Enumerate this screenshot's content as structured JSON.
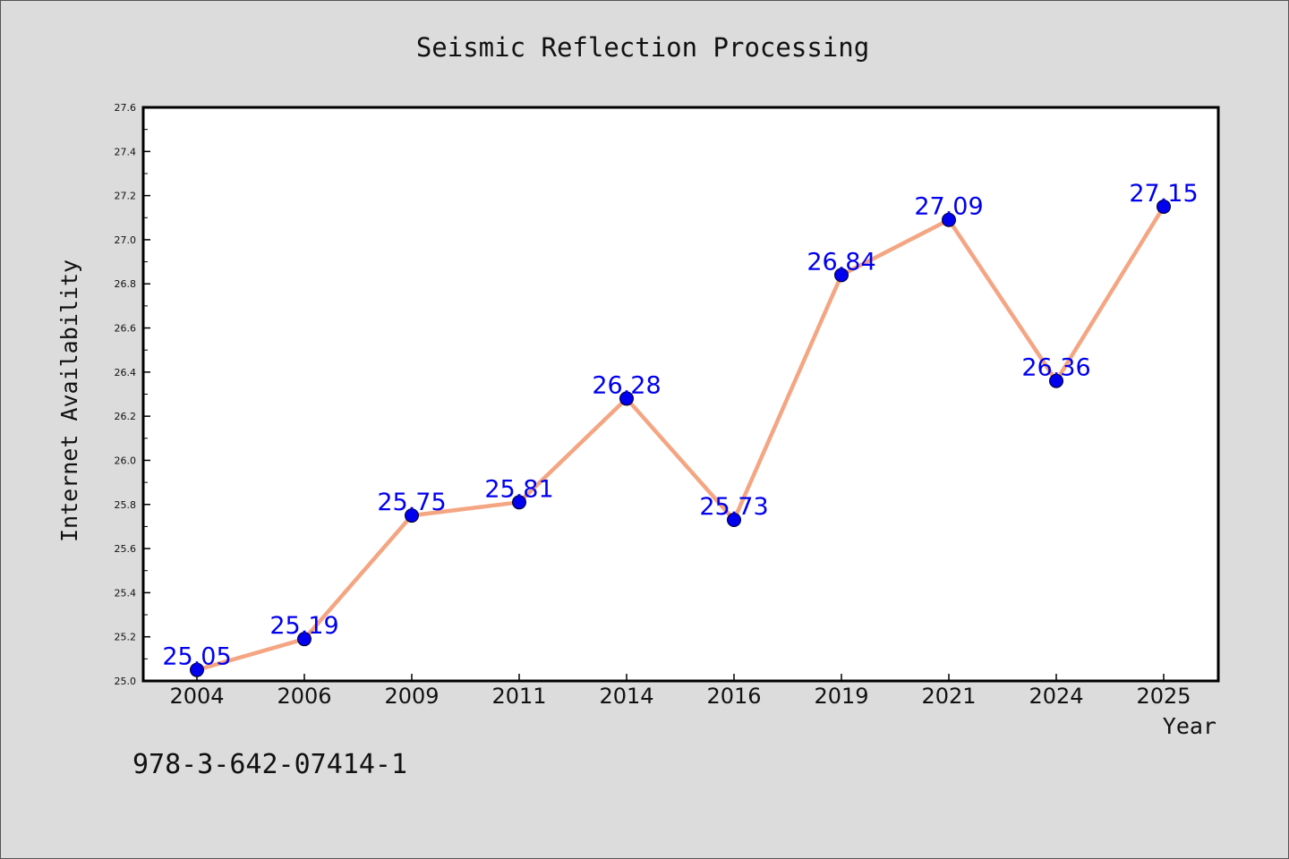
{
  "chart_data": {
    "type": "line",
    "title": "Seismic Reflection Processing",
    "xlabel": "Year",
    "ylabel": "Internet Availability",
    "categories": [
      "2004",
      "2006",
      "2009",
      "2011",
      "2014",
      "2016",
      "2019",
      "2021",
      "2024",
      "2025"
    ],
    "series": [
      {
        "values": [
          25.05,
          25.19,
          25.75,
          25.81,
          26.28,
          25.73,
          26.84,
          27.09,
          26.36,
          27.15
        ],
        "line_color": "#f4a582",
        "marker_color": "#0000ee"
      }
    ],
    "data_labels": [
      "25.05",
      "25.19",
      "25.75",
      "25.81",
      "26.28",
      "25.73",
      "26.84",
      "27.09",
      "26.36",
      "27.15"
    ],
    "yticks": [
      "25.0",
      "25.2",
      "25.4",
      "25.6",
      "25.8",
      "26.0",
      "26.2",
      "26.4",
      "26.6",
      "26.8",
      "27.0",
      "27.2",
      "27.4",
      "27.6"
    ],
    "ylim": [
      25.0,
      27.6
    ],
    "grid": false,
    "legend": "none"
  },
  "footer": {
    "code": "978-3-642-07414-1"
  }
}
